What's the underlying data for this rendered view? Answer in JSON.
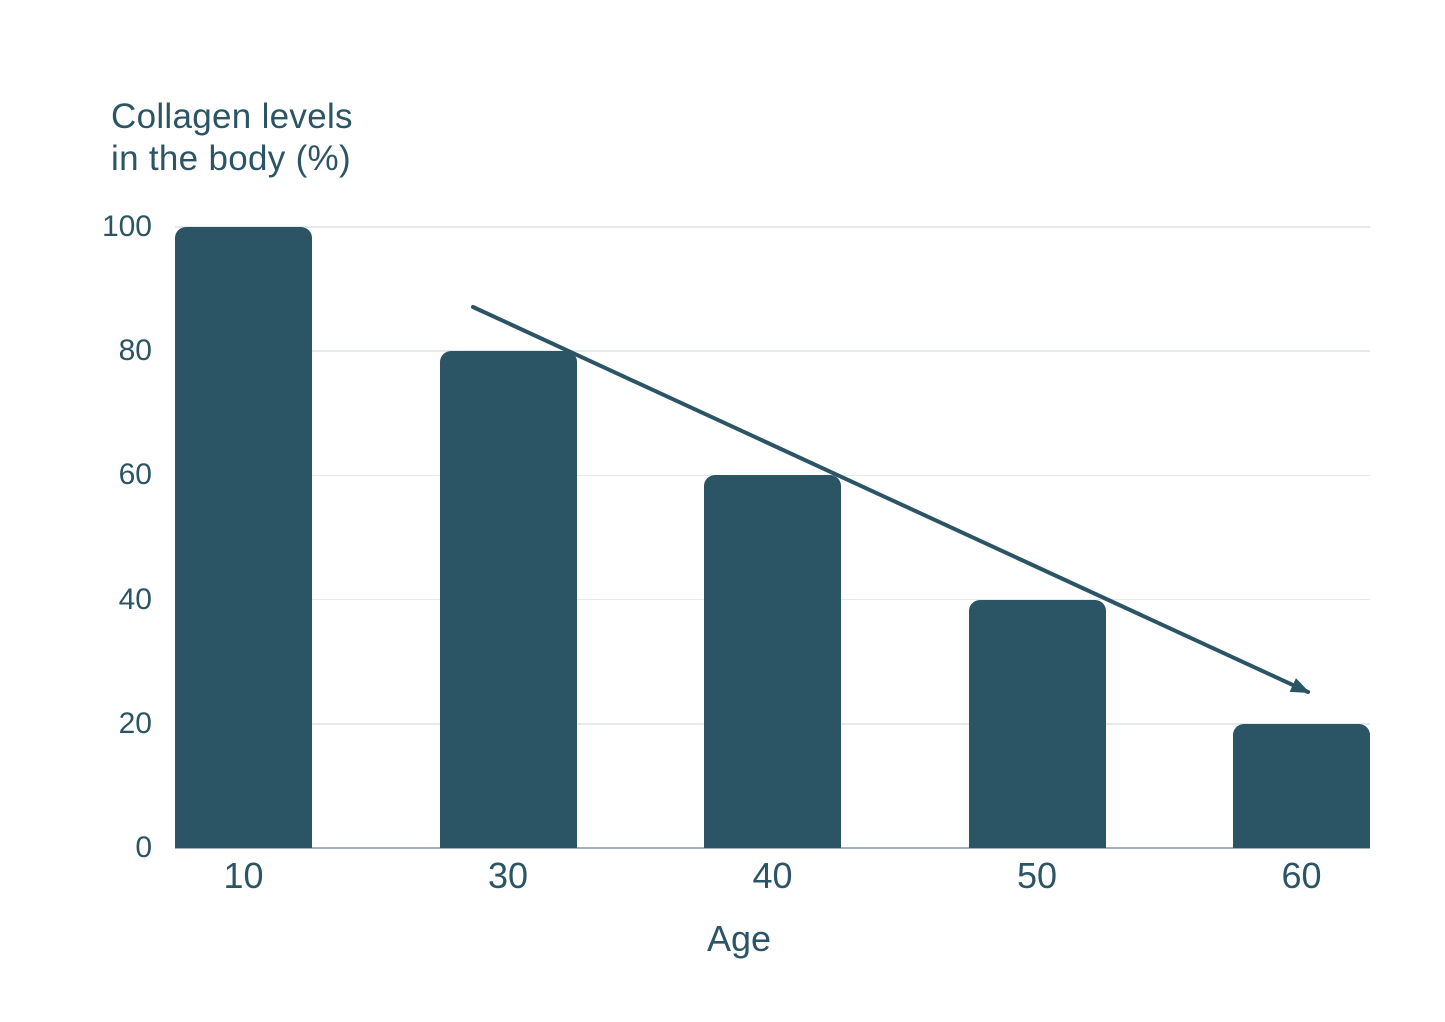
{
  "page": {
    "background": "#ffffff"
  },
  "chart_data": {
    "type": "bar",
    "title": "Collagen levels in the body (%)",
    "title_lines": [
      "Collagen levels",
      "in the body (%)"
    ],
    "xlabel": "Age",
    "ylabel": "Collagen levels in the body (%)",
    "categories": [
      "10",
      "30",
      "40",
      "50",
      "60"
    ],
    "values": [
      100,
      80,
      60,
      40,
      20
    ],
    "series": [
      {
        "name": "Collagen level (%)",
        "values": [
          100,
          80,
          60,
          40,
          20
        ]
      }
    ],
    "y_ticks": [
      0,
      20,
      40,
      60,
      80,
      100
    ],
    "ylim": [
      0,
      100
    ],
    "grid": "horizontal gridlines every 20 units",
    "legend_position": "none",
    "annotations": [
      {
        "type": "arrow",
        "description": "straight downward trend arrow from approx (age 30, 87%) to (age 60, 24%)"
      }
    ],
    "colors": {
      "bar": "#2b5565",
      "text": "#2b5565",
      "arrow": "#2b5565",
      "gridline": "#e4e9eb",
      "axis_line": "#a4b2b8",
      "background": "#ffffff"
    }
  }
}
